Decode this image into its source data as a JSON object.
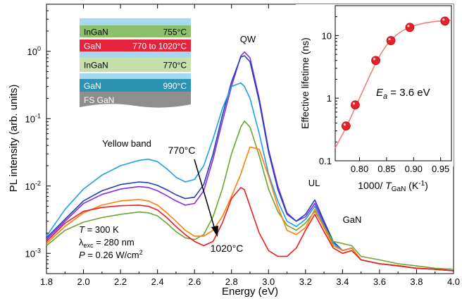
{
  "chart_data": [
    {
      "type": "line",
      "xlabel": "Energy (eV)",
      "ylabel": "PL intensity (arb. units)",
      "xlim": [
        1.8,
        4.0
      ],
      "ylim": [
        0.0005,
        5
      ],
      "y_scale": "log",
      "x_ticks": [
        "1.8",
        "2.0",
        "2.2",
        "2.4",
        "2.6",
        "2.8",
        "3.0",
        "3.2",
        "3.4",
        "3.6",
        "3.8",
        "4.0"
      ],
      "y_ticks": [
        {
          "base": "10",
          "exp": "-3"
        },
        {
          "base": "10",
          "exp": "-2"
        },
        {
          "base": "10",
          "exp": "-1"
        },
        {
          "base": "10",
          "exp": "0"
        }
      ],
      "annotations": {
        "yellow_band": "Yellow band",
        "qw": "QW",
        "ul": "UL",
        "gan": "GaN",
        "temp_high": "770°C",
        "temp_low": "1020°C",
        "cond_t": {
          "sym": "T",
          "rest": " = 300 K"
        },
        "cond_lambda": {
          "sym": "λ",
          "sub": "exc",
          "rest": " = 280 nm"
        },
        "cond_p": {
          "sym": "P",
          "rest": " = 0.26 W/cm",
          "sup": "2"
        }
      },
      "structure_layers": [
        {
          "name": "InGaN",
          "temp": "755°C",
          "color": "#8dc06a",
          "text_color": "#000000"
        },
        {
          "name": "GaN",
          "temp": "770 to 1020°C",
          "color": "#e5243b",
          "text_color": "#ffffff"
        },
        {
          "name": "InGaN",
          "temp": "770°C",
          "color": "#c5e0a8",
          "text_color": "#000000"
        },
        {
          "name": "GaN",
          "temp": "990°C",
          "color": "#2b93b3",
          "text_color": "#ffffff"
        },
        {
          "name": "FS GaN",
          "temp": "",
          "color": "#8e8e8e",
          "text_color": "#ffffff"
        }
      ],
      "series": [
        {
          "color": "#8a2be2",
          "x": [
            1.8,
            1.9,
            2.0,
            2.1,
            2.2,
            2.3,
            2.35,
            2.4,
            2.45,
            2.5,
            2.55,
            2.6,
            2.65,
            2.7,
            2.75,
            2.8,
            2.85,
            2.87,
            2.9,
            2.95,
            3.0,
            3.05,
            3.1,
            3.15,
            3.2,
            3.25,
            3.3,
            3.35,
            3.4,
            3.45,
            3.5,
            3.6,
            3.7,
            3.8,
            3.9,
            4.0
          ],
          "y": [
            0.0016,
            0.003,
            0.0055,
            0.0075,
            0.009,
            0.0098,
            0.0095,
            0.0085,
            0.0072,
            0.006,
            0.0052,
            0.0055,
            0.0085,
            0.025,
            0.09,
            0.3,
            0.85,
            0.98,
            0.8,
            0.2,
            0.035,
            0.01,
            0.004,
            0.003,
            0.0035,
            0.0055,
            0.0028,
            0.0014,
            0.0011,
            0.0012,
            0.0008,
            0.0007,
            0.00065,
            0.0006,
            0.00058,
            0.00055
          ]
        },
        {
          "color": "#1f3fb3",
          "x": [
            1.8,
            1.9,
            2.0,
            2.1,
            2.2,
            2.3,
            2.35,
            2.4,
            2.45,
            2.5,
            2.55,
            2.6,
            2.65,
            2.7,
            2.75,
            2.8,
            2.85,
            2.87,
            2.9,
            2.95,
            3.0,
            3.05,
            3.1,
            3.15,
            3.2,
            3.25,
            3.3,
            3.35,
            3.4,
            3.45,
            3.5,
            3.6,
            3.7,
            3.8,
            3.9,
            4.0
          ],
          "y": [
            0.0017,
            0.0032,
            0.006,
            0.0085,
            0.0105,
            0.0115,
            0.0112,
            0.0102,
            0.0088,
            0.0074,
            0.0065,
            0.0068,
            0.0105,
            0.03,
            0.11,
            0.35,
            0.82,
            0.86,
            0.7,
            0.18,
            0.032,
            0.009,
            0.0038,
            0.003,
            0.0038,
            0.0062,
            0.003,
            0.0015,
            0.0011,
            0.0012,
            0.0008,
            0.0007,
            0.00066,
            0.0006,
            0.00058,
            0.00055
          ]
        },
        {
          "color": "#1ea0e6",
          "x": [
            1.8,
            1.9,
            2.0,
            2.1,
            2.2,
            2.3,
            2.35,
            2.4,
            2.45,
            2.5,
            2.55,
            2.6,
            2.65,
            2.7,
            2.75,
            2.8,
            2.85,
            2.87,
            2.9,
            2.95,
            3.0,
            3.05,
            3.1,
            3.15,
            3.2,
            3.25,
            3.3,
            3.35,
            3.4,
            3.45,
            3.5,
            3.6,
            3.7,
            3.8,
            3.9,
            4.0
          ],
          "y": [
            0.0018,
            0.0045,
            0.009,
            0.0145,
            0.02,
            0.024,
            0.025,
            0.023,
            0.018,
            0.0135,
            0.0115,
            0.0125,
            0.02,
            0.05,
            0.14,
            0.3,
            0.34,
            0.3,
            0.2,
            0.06,
            0.015,
            0.006,
            0.003,
            0.0025,
            0.0032,
            0.005,
            0.0026,
            0.0014,
            0.0011,
            0.0012,
            0.0008,
            0.0007,
            0.00066,
            0.0006,
            0.00058,
            0.00055
          ]
        },
        {
          "color": "#6ca62c",
          "x": [
            1.8,
            1.9,
            2.0,
            2.1,
            2.2,
            2.3,
            2.35,
            2.4,
            2.45,
            2.5,
            2.55,
            2.6,
            2.65,
            2.7,
            2.75,
            2.8,
            2.85,
            2.87,
            2.9,
            2.95,
            3.0,
            3.05,
            3.1,
            3.15,
            3.2,
            3.25,
            3.3,
            3.35,
            3.4,
            3.45,
            3.5,
            3.6,
            3.7,
            3.8,
            3.9,
            4.0
          ],
          "y": [
            0.0013,
            0.0022,
            0.0029,
            0.0034,
            0.0038,
            0.0041,
            0.004,
            0.0036,
            0.0028,
            0.0021,
            0.0017,
            0.0016,
            0.0019,
            0.0035,
            0.009,
            0.03,
            0.075,
            0.092,
            0.075,
            0.028,
            0.009,
            0.0042,
            0.0026,
            0.0022,
            0.0028,
            0.0042,
            0.0025,
            0.0015,
            0.0014,
            0.0013,
            0.0009,
            0.0008,
            0.0007,
            0.00065,
            0.0006,
            0.00058
          ]
        },
        {
          "color": "#ff7f0e",
          "x": [
            1.8,
            1.9,
            2.0,
            2.1,
            2.2,
            2.3,
            2.35,
            2.4,
            2.45,
            2.5,
            2.55,
            2.6,
            2.65,
            2.7,
            2.75,
            2.8,
            2.85,
            2.87,
            2.9,
            2.95,
            3.0,
            3.05,
            3.1,
            3.15,
            3.2,
            3.25,
            3.3,
            3.35,
            3.4,
            3.45,
            3.5,
            3.6,
            3.7,
            3.8,
            3.9,
            4.0
          ],
          "y": [
            0.0014,
            0.0025,
            0.004,
            0.0052,
            0.006,
            0.0063,
            0.006,
            0.0052,
            0.004,
            0.003,
            0.0022,
            0.0018,
            0.0018,
            0.0022,
            0.0035,
            0.007,
            0.015,
            0.022,
            0.038,
            0.035,
            0.014,
            0.005,
            0.0022,
            0.0019,
            0.0024,
            0.0045,
            0.0024,
            0.0013,
            0.0011,
            0.0012,
            0.0008,
            0.0007,
            0.00066,
            0.0006,
            0.00058,
            0.00055
          ]
        },
        {
          "color": "#ee1c1c",
          "x": [
            1.8,
            1.9,
            2.0,
            2.1,
            2.2,
            2.3,
            2.35,
            2.4,
            2.45,
            2.5,
            2.55,
            2.6,
            2.65,
            2.7,
            2.75,
            2.8,
            2.85,
            2.87,
            2.9,
            2.95,
            3.0,
            3.05,
            3.1,
            3.15,
            3.2,
            3.25,
            3.3,
            3.35,
            3.4,
            3.45,
            3.5,
            3.6,
            3.7,
            3.8,
            3.9,
            4.0
          ],
          "y": [
            0.0015,
            0.0028,
            0.0042,
            0.0048,
            0.0051,
            0.0052,
            0.005,
            0.0044,
            0.0034,
            0.0025,
            0.0019,
            0.0015,
            0.0013,
            0.0015,
            0.0028,
            0.0065,
            0.0095,
            0.0088,
            0.005,
            0.002,
            0.0011,
            0.0009,
            0.0009,
            0.0012,
            0.0022,
            0.0038,
            0.0021,
            0.0012,
            0.001,
            0.0011,
            0.0008,
            0.0007,
            0.00065,
            0.0006,
            0.00058,
            0.00055
          ]
        }
      ]
    },
    {
      "type": "scatter",
      "xlabel": {
        "text": "1000/ ",
        "sym": "T",
        "sub": "GaN",
        "rest": " (K",
        "sup": "-1",
        "end": ")"
      },
      "ylabel": "Effective lifetime (ns)",
      "xlim": [
        0.755,
        0.97
      ],
      "ylim": [
        0.1,
        30
      ],
      "y_scale": "log",
      "x_ticks": [
        "0.80",
        "0.85",
        "0.90",
        "0.95"
      ],
      "y_ticks": [
        "0.1",
        "1",
        "10"
      ],
      "annotation": {
        "sym": "E",
        "sub": "a",
        "rest": " = 3.6 eV"
      },
      "points": {
        "x": [
          0.775,
          0.792,
          0.83,
          0.858,
          0.893,
          0.958
        ],
        "y": [
          0.36,
          0.78,
          4.0,
          8.3,
          13.5,
          17.0
        ]
      },
      "fit": {
        "x": [
          0.755,
          0.77,
          0.78,
          0.79,
          0.8,
          0.81,
          0.82,
          0.83,
          0.84,
          0.85,
          0.86,
          0.87,
          0.88,
          0.89,
          0.9,
          0.92,
          0.94,
          0.96,
          0.97
        ],
        "y": [
          0.16,
          0.28,
          0.42,
          0.65,
          1.0,
          1.55,
          2.4,
          3.6,
          5.2,
          7.0,
          8.8,
          10.5,
          12.0,
          13.2,
          14.3,
          15.8,
          16.8,
          17.4,
          17.6
        ]
      },
      "marker_color": "#e8202a",
      "fit_color": "#f08080"
    }
  ]
}
